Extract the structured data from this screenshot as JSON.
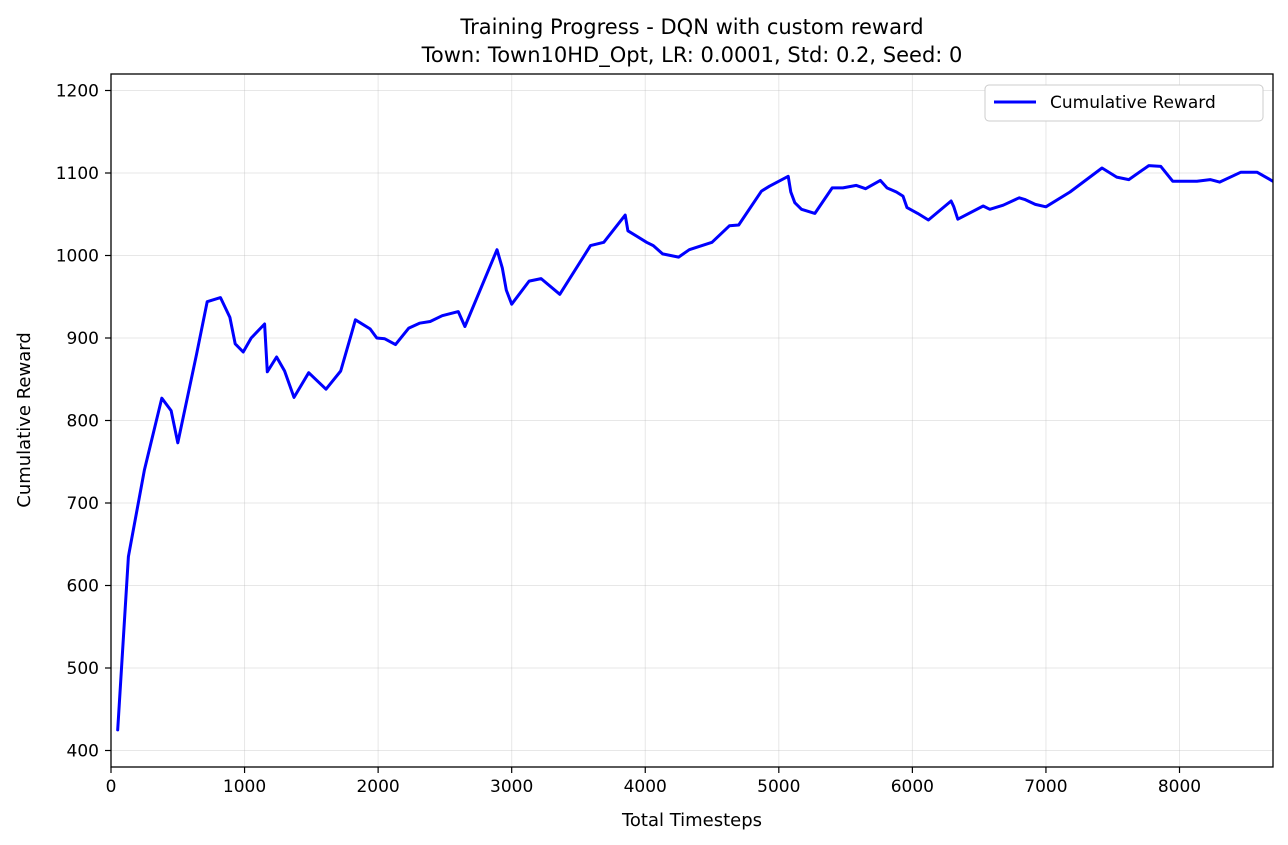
{
  "chart_data": {
    "type": "line",
    "title": "Training Progress - DQN with custom reward",
    "subtitle": "Town: Town10HD_Opt, LR: 0.0001, Std: 0.2, Seed: 0",
    "xlabel": "Total Timesteps",
    "ylabel": "Cumulative Reward",
    "xlim": [
      0,
      8700
    ],
    "ylim": [
      380,
      1220
    ],
    "xticks": [
      0,
      1000,
      2000,
      3000,
      4000,
      5000,
      6000,
      7000,
      8000
    ],
    "yticks": [
      400,
      500,
      600,
      700,
      800,
      900,
      1000,
      1100,
      1200
    ],
    "grid": true,
    "legend_position": "top-right",
    "series": [
      {
        "name": "Cumulative Reward",
        "color": "#0000ff",
        "x": [
          50,
          130,
          250,
          380,
          450,
          500,
          640,
          720,
          820,
          890,
          930,
          990,
          1050,
          1150,
          1170,
          1240,
          1300,
          1370,
          1480,
          1610,
          1720,
          1800,
          1830,
          1940,
          1990,
          2050,
          2130,
          2230,
          2310,
          2390,
          2480,
          2600,
          2650,
          2890,
          2930,
          2960,
          3000,
          3130,
          3220,
          3360,
          3590,
          3690,
          3850,
          3870,
          4010,
          4060,
          4130,
          4250,
          4330,
          4500,
          4630,
          4700,
          4870,
          4930,
          5070,
          5090,
          5120,
          5170,
          5270,
          5400,
          5480,
          5580,
          5650,
          5760,
          5810,
          5880,
          5930,
          5960,
          6040,
          6120,
          6290,
          6310,
          6340,
          6530,
          6580,
          6680,
          6800,
          6840,
          6920,
          7000,
          7180,
          7420,
          7530,
          7620,
          7770,
          7860,
          7950,
          8000,
          8130,
          8230,
          8300,
          8460,
          8580,
          8700
        ],
        "y": [
          425,
          635,
          740,
          827,
          812,
          773,
          880,
          944,
          949,
          925,
          893,
          883,
          900,
          917,
          859,
          877,
          860,
          828,
          858,
          838,
          860,
          905,
          922,
          911,
          900,
          899,
          892,
          912,
          918,
          920,
          927,
          932,
          914,
          1007,
          985,
          958,
          941,
          969,
          972,
          953,
          1012,
          1016,
          1049,
          1030,
          1016,
          1012,
          1002,
          998,
          1007,
          1016,
          1036,
          1037,
          1078,
          1084,
          1096,
          1077,
          1064,
          1056,
          1051,
          1082,
          1082,
          1085,
          1081,
          1091,
          1082,
          1077,
          1072,
          1058,
          1051,
          1043,
          1066,
          1059,
          1044,
          1060,
          1056,
          1061,
          1070,
          1068,
          1062,
          1059,
          1077,
          1106,
          1095,
          1092,
          1109,
          1108,
          1090,
          1090,
          1090,
          1092,
          1089,
          1101,
          1101,
          1090
        ]
      }
    ]
  }
}
